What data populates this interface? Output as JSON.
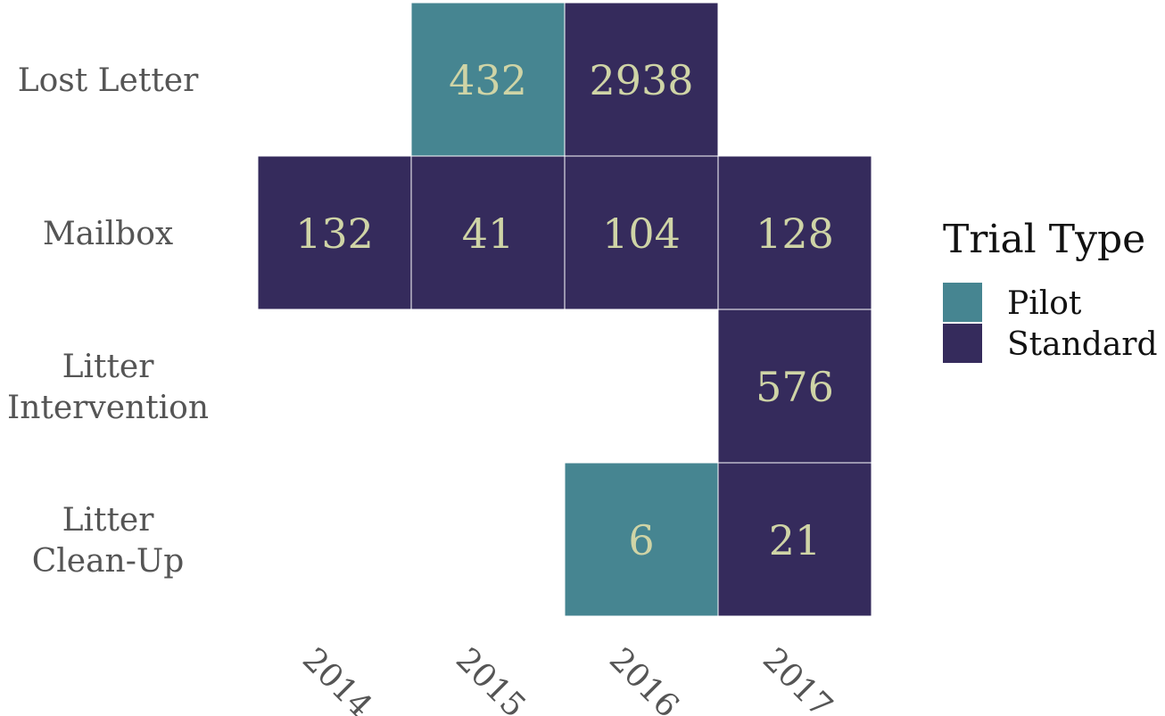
{
  "chart_data": {
    "type": "heatmap",
    "x_categories": [
      "2014",
      "2015",
      "2016",
      "2017"
    ],
    "y_categories": [
      "Lost Letter",
      "Mailbox",
      "Litter Intervention",
      "Litter Clean-Up"
    ],
    "y_label_lines": [
      [
        "Lost Letter"
      ],
      [
        "Mailbox"
      ],
      [
        "Litter",
        "Intervention"
      ],
      [
        "Litter",
        "Clean-Up"
      ]
    ],
    "cells": [
      {
        "x": "2015",
        "y": "Lost Letter",
        "value": 432,
        "type": "Pilot"
      },
      {
        "x": "2016",
        "y": "Lost Letter",
        "value": 2938,
        "type": "Standard"
      },
      {
        "x": "2014",
        "y": "Mailbox",
        "value": 132,
        "type": "Standard"
      },
      {
        "x": "2015",
        "y": "Mailbox",
        "value": 41,
        "type": "Standard"
      },
      {
        "x": "2016",
        "y": "Mailbox",
        "value": 104,
        "type": "Standard"
      },
      {
        "x": "2017",
        "y": "Mailbox",
        "value": 128,
        "type": "Standard"
      },
      {
        "x": "2017",
        "y": "Litter Intervention",
        "value": 576,
        "type": "Standard"
      },
      {
        "x": "2016",
        "y": "Litter Clean-Up",
        "value": 6,
        "type": "Pilot"
      },
      {
        "x": "2017",
        "y": "Litter Clean-Up",
        "value": 21,
        "type": "Standard"
      }
    ],
    "legend": {
      "title": "Trial Type",
      "position": "right",
      "items": [
        {
          "label": "Pilot",
          "color": "#468591"
        },
        {
          "label": "Standard",
          "color": "#352B5C"
        }
      ]
    },
    "grid": false
  },
  "colors": {
    "Pilot": "#468591",
    "Standard": "#352B5C",
    "cell_text": "#CFD4A6",
    "axis_text": "#555555"
  }
}
